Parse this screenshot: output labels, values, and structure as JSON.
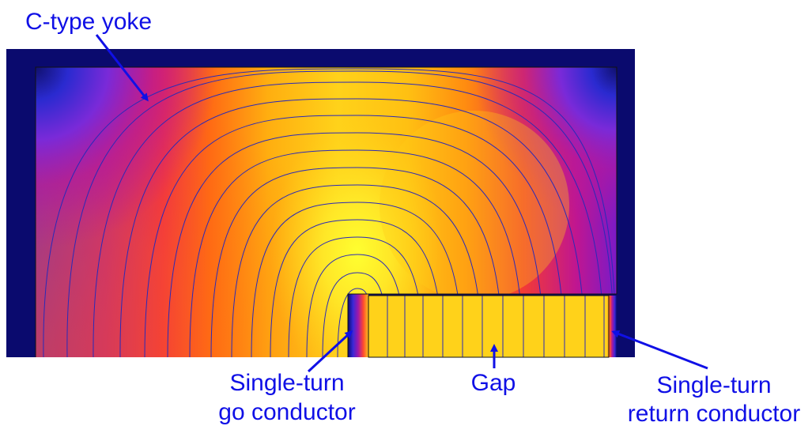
{
  "labels": {
    "yoke": "C-type yoke",
    "go_line1": "Single-turn",
    "go_line2": "go conductor",
    "gap": "Gap",
    "return_line1": "Single-turn",
    "return_line2": "return conductor"
  },
  "colors": {
    "label": "#1010e6",
    "yoke_frame": "#0a0a6e",
    "field_line": "#2a2ab8",
    "outline": "#111111",
    "gap_fill": "#ffd21a"
  }
}
